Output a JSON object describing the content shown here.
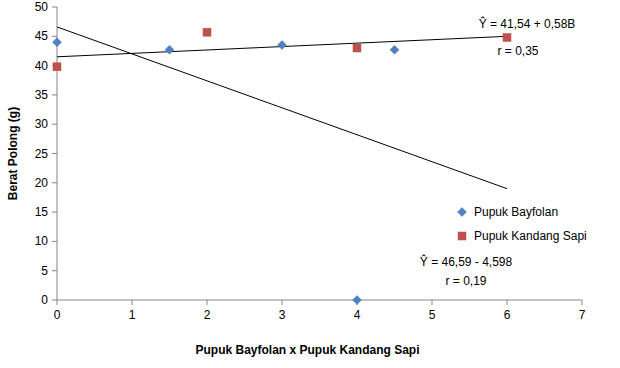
{
  "chart_data": {
    "type": "scatter",
    "x_label": "Pupuk Bayfolan x Pupuk Kandang Sapi",
    "y_label": "Berat Polong (g)",
    "xlim": [
      0,
      7
    ],
    "xticks": [
      0,
      1,
      2,
      3,
      4,
      5,
      6,
      7
    ],
    "ylim": [
      0,
      50
    ],
    "yticks": [
      0,
      5,
      10,
      15,
      20,
      25,
      30,
      35,
      40,
      45,
      50
    ],
    "grid": false,
    "legend": "right",
    "series": [
      {
        "name": "Pupuk Bayfolan",
        "color": "#4f81bd",
        "marker": "diamond",
        "x": [
          0,
          1.5,
          3,
          4,
          4.5
        ],
        "values": [
          44.0,
          42.7,
          43.5,
          0,
          42.7
        ]
      },
      {
        "name": "Pupuk Kandang Sapi",
        "color": "#c0504d",
        "marker": "square",
        "x": [
          0,
          2,
          4,
          6
        ],
        "values": [
          39.8,
          45.7,
          43.0,
          44.8
        ]
      }
    ],
    "trendlines": [
      {
        "color": "#000000",
        "x": [
          0,
          6
        ],
        "values": [
          46.6,
          19.0
        ]
      },
      {
        "color": "#000000",
        "x": [
          0,
          6
        ],
        "values": [
          41.5,
          45.0
        ]
      }
    ],
    "annotations": [
      "Ŷ = 41,54 + 0,58B",
      "r = 0,35",
      "Ŷ = 46,59 - 4,598",
      "r = 0,19"
    ]
  }
}
